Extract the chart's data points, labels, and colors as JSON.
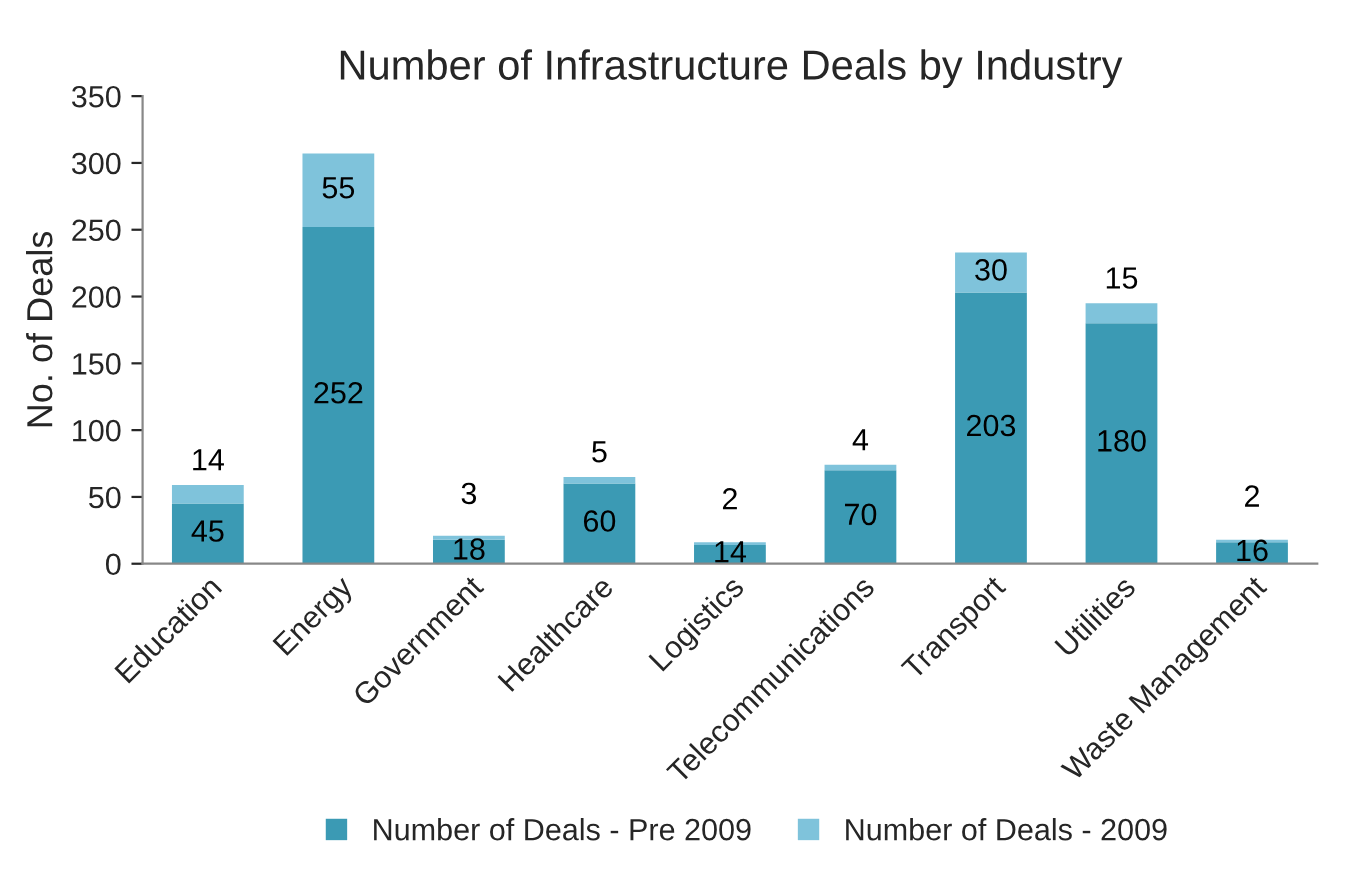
{
  "chart_data": {
    "type": "bar",
    "title": "Number of Infrastructure Deals by Industry",
    "ylabel": "No. of Deals",
    "categories": [
      "Education",
      "Energy",
      "Government",
      "Healthcare",
      "Logistics",
      "Telecommunications",
      "Transport",
      "Utilities",
      "Waste Management"
    ],
    "stacked": true,
    "data_labels": true,
    "legend": "bottom",
    "grid": false,
    "ylim": [
      0,
      350
    ],
    "yticks": [
      0,
      50,
      100,
      150,
      200,
      250,
      300,
      350
    ],
    "series": [
      {
        "name": "Number of Deals - Pre 2009",
        "color": "#3b9ab4",
        "values": [
          45,
          252,
          18,
          60,
          14,
          70,
          203,
          180,
          16
        ]
      },
      {
        "name": "Number of Deals - 2009",
        "color": "#7fc3db",
        "values": [
          14,
          55,
          3,
          5,
          2,
          4,
          30,
          15,
          2
        ]
      }
    ]
  }
}
